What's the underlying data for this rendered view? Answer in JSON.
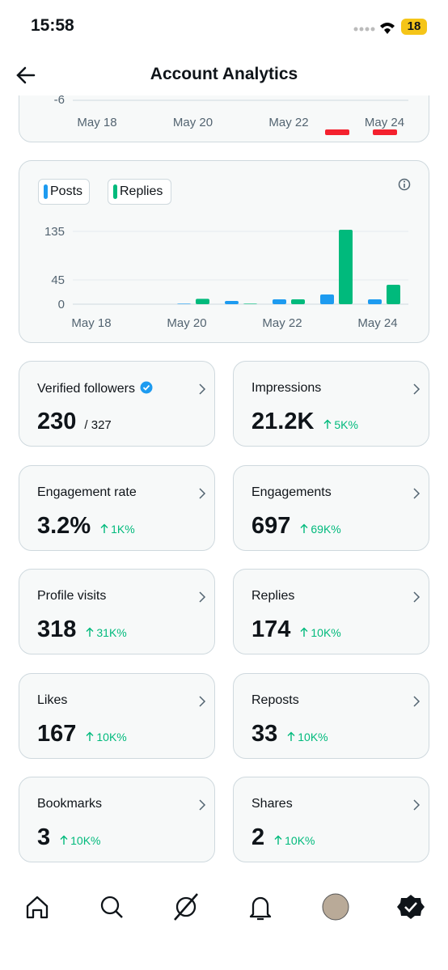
{
  "status_bar": {
    "time": "15:58",
    "battery": "18"
  },
  "header": {
    "title": "Account Analytics"
  },
  "top_chart": {
    "yticks": [
      -6
    ],
    "categories": [
      "May 18",
      "May 20",
      "May 22",
      "May 24"
    ]
  },
  "chart": {
    "type": "bar",
    "categories": [
      "May 18",
      null,
      "May 20",
      null,
      "May 22",
      null,
      "May 24"
    ],
    "series": [
      {
        "name": "Posts",
        "color": "#1d9bf0",
        "values": [
          0,
          0,
          1,
          6,
          9,
          18,
          9
        ]
      },
      {
        "name": "Replies",
        "color": "#00ba7c",
        "values": [
          0,
          0,
          10,
          1,
          9,
          138,
          36
        ]
      }
    ],
    "ylim": [
      0,
      140
    ],
    "yticks": [
      0,
      45,
      135
    ],
    "grid": true
  },
  "metrics": [
    {
      "label": "Verified followers",
      "value": "230",
      "secondary": "/ 327"
    },
    {
      "label": "Impressions",
      "value": "21.2K",
      "change": "5K%"
    },
    {
      "label": "Engagement rate",
      "value": "3.2%",
      "change": "1K%"
    },
    {
      "label": "Engagements",
      "value": "697",
      "change": "69K%"
    },
    {
      "label": "Profile visits",
      "value": "318",
      "change": "31K%"
    },
    {
      "label": "Replies",
      "value": "174",
      "change": "10K%"
    },
    {
      "label": "Likes",
      "value": "167",
      "change": "10K%"
    },
    {
      "label": "Reposts",
      "value": "33",
      "change": "10K%"
    },
    {
      "label": "Bookmarks",
      "value": "3",
      "change": "10K%"
    },
    {
      "label": "Shares",
      "value": "2",
      "change": "10K%"
    }
  ]
}
